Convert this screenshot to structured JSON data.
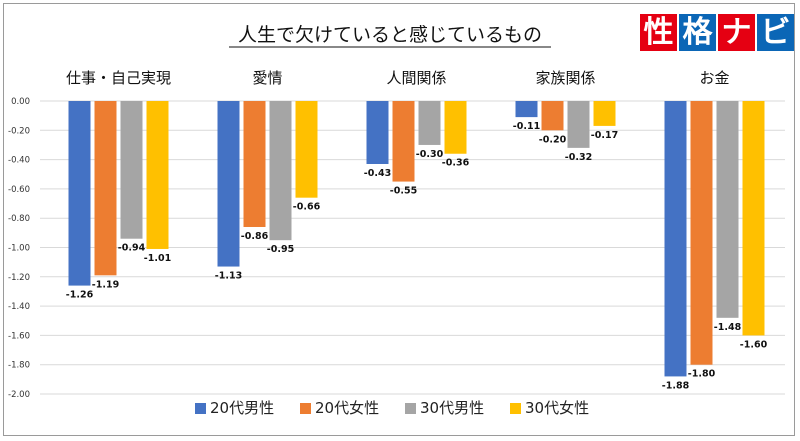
{
  "logo": {
    "chars": [
      "性",
      "格",
      "ナ",
      "ビ"
    ],
    "colors": [
      "#e50012",
      "#0b66b6",
      "#e50012",
      "#0b66b6"
    ]
  },
  "chart_data": {
    "type": "bar",
    "title": "人生で欠けていると感じているもの",
    "categories": [
      "仕事・自己実現",
      "愛情",
      "人間関係",
      "家族関係",
      "お金"
    ],
    "series": [
      {
        "name": "20代男性",
        "color": "#4472c4",
        "values": [
          -1.26,
          -1.13,
          -0.43,
          -0.11,
          -1.88
        ]
      },
      {
        "name": "20代女性",
        "color": "#ed7d31",
        "values": [
          -1.19,
          -0.86,
          -0.55,
          -0.2,
          -1.8
        ]
      },
      {
        "name": "30代男性",
        "color": "#a5a5a5",
        "values": [
          -0.94,
          -0.95,
          -0.3,
          -0.32,
          -1.48
        ]
      },
      {
        "name": "30代女性",
        "color": "#ffc000",
        "values": [
          -1.01,
          -0.66,
          -0.36,
          -0.17,
          -1.6
        ]
      }
    ],
    "ylim": [
      -2.0,
      0.0
    ],
    "yticks": [
      "0.00",
      "-0.20",
      "-0.40",
      "-0.60",
      "-0.80",
      "-1.00",
      "-1.20",
      "-1.40",
      "-1.60",
      "-1.80",
      "-2.00"
    ],
    "grid": true,
    "legend_position": "bottom"
  }
}
